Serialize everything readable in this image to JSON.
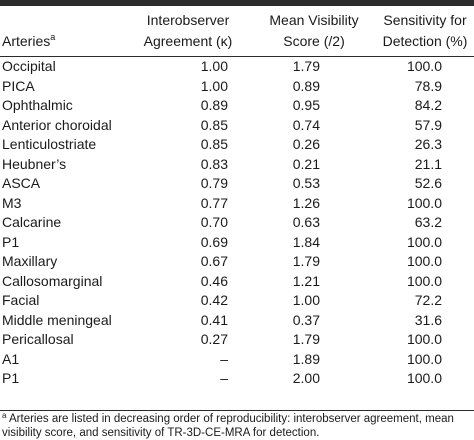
{
  "table": {
    "headers": {
      "arteries": "Arteries",
      "arteries_mark": "a",
      "kappa_line1": "Interobserver",
      "kappa_line2": "Agreement (κ)",
      "visibility_line1": "Mean Visibility",
      "visibility_line2": "Score (/2)",
      "sensitivity_line1": "Sensitivity for",
      "sensitivity_line2": "Detection (%)"
    },
    "rows": [
      {
        "artery": "Occipital",
        "kappa": "1.00",
        "visibility": "1.79",
        "sensitivity": "100.0"
      },
      {
        "artery": "PICA",
        "kappa": "1.00",
        "visibility": "0.89",
        "sensitivity": "78.9"
      },
      {
        "artery": "Ophthalmic",
        "kappa": "0.89",
        "visibility": "0.95",
        "sensitivity": "84.2"
      },
      {
        "artery": "Anterior choroidal",
        "kappa": "0.85",
        "visibility": "0.74",
        "sensitivity": "57.9"
      },
      {
        "artery": "Lenticulostriate",
        "kappa": "0.85",
        "visibility": "0.26",
        "sensitivity": "26.3"
      },
      {
        "artery": "Heubner’s",
        "kappa": "0.83",
        "visibility": "0.21",
        "sensitivity": "21.1"
      },
      {
        "artery": "ASCA",
        "kappa": "0.79",
        "visibility": "0.53",
        "sensitivity": "52.6"
      },
      {
        "artery": "M3",
        "kappa": "0.77",
        "visibility": "1.26",
        "sensitivity": "100.0"
      },
      {
        "artery": "Calcarine",
        "kappa": "0.70",
        "visibility": "0.63",
        "sensitivity": "63.2"
      },
      {
        "artery": "P1",
        "kappa": "0.69",
        "visibility": "1.84",
        "sensitivity": "100.0"
      },
      {
        "artery": "Maxillary",
        "kappa": "0.67",
        "visibility": "1.79",
        "sensitivity": "100.0"
      },
      {
        "artery": "Callosomarginal",
        "kappa": "0.46",
        "visibility": "1.21",
        "sensitivity": "100.0"
      },
      {
        "artery": "Facial",
        "kappa": "0.42",
        "visibility": "1.00",
        "sensitivity": "72.2"
      },
      {
        "artery": "Middle meningeal",
        "kappa": "0.41",
        "visibility": "0.37",
        "sensitivity": "31.6"
      },
      {
        "artery": "Pericallosal",
        "kappa": "0.27",
        "visibility": "1.79",
        "sensitivity": "100.0"
      },
      {
        "artery": "A1",
        "kappa": "–",
        "visibility": "1.89",
        "sensitivity": "100.0"
      },
      {
        "artery": "P1",
        "kappa": "–",
        "visibility": "2.00",
        "sensitivity": "100.0"
      }
    ],
    "footnote": {
      "mark": "a",
      "line1": " Arteries are listed in decreasing order of reproducibility: interobserver agreement, mean",
      "line2": "visibility score, and sensitivity of TR-3D-CE-MRA for detection."
    }
  }
}
